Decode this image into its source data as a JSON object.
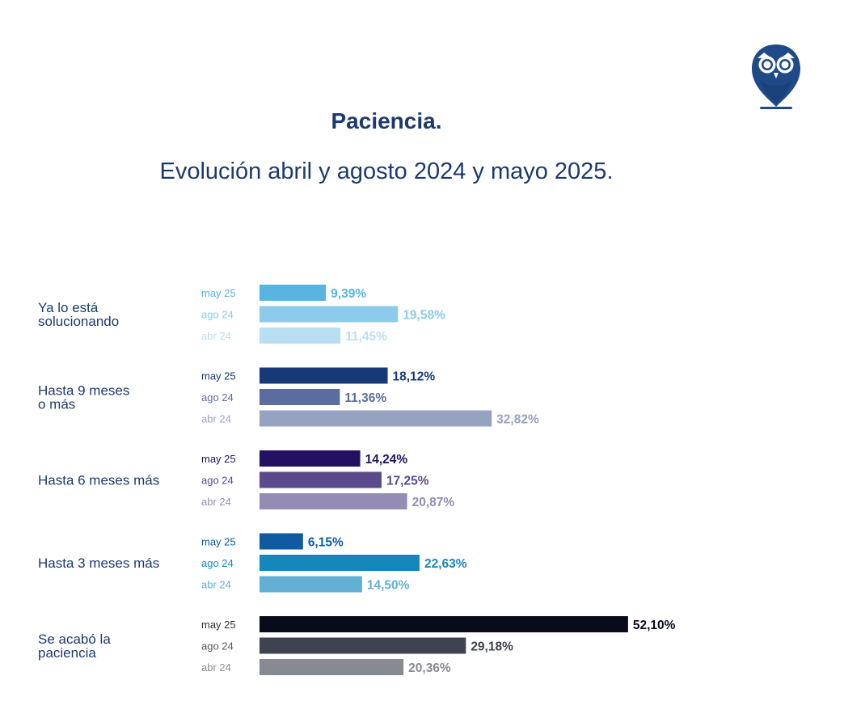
{
  "logo": {
    "icon": "owl-logo-icon",
    "color": "#1f4a8a"
  },
  "header": {
    "title": "Paciencia.",
    "subtitle": "Evolución abril y agosto 2024 y mayo 2025."
  },
  "chart_data": {
    "type": "bar",
    "orientation": "horizontal",
    "title": "Paciencia.",
    "subtitle": "Evolución abril y agosto 2024 y mayo 2025.",
    "periods": [
      "may 25",
      "ago 24",
      "abr 24"
    ],
    "value_suffix": "%",
    "decimal_separator": ",",
    "xlim": [
      0,
      60
    ],
    "groups": [
      {
        "label_lines": [
          "Ya lo está",
          "solucionando"
        ],
        "values": [
          9.39,
          19.58,
          11.45
        ],
        "value_labels": [
          "9,39%",
          "19,58%",
          "11,45%"
        ],
        "colors": [
          "#5ab4e0",
          "#8ccbeb",
          "#b9dff3"
        ],
        "label_colors": [
          "#5ab4e0",
          "#8ccbeb",
          "#b9dff3"
        ],
        "period_colors": [
          "#5ab4e0",
          "#8ccbeb",
          "#b9dff3"
        ]
      },
      {
        "label_lines": [
          "Hasta 9 meses",
          "o más"
        ],
        "values": [
          18.12,
          11.36,
          32.82
        ],
        "value_labels": [
          "18,12%",
          "11,36%",
          "32,82%"
        ],
        "colors": [
          "#163a78",
          "#5a6d9e",
          "#95a3c1"
        ],
        "label_colors": [
          "#163a78",
          "#5a6d9e",
          "#95a3c1"
        ],
        "period_colors": [
          "#163a78",
          "#5a6d9e",
          "#95a3c1"
        ]
      },
      {
        "label_lines": [
          "Hasta 6 meses más"
        ],
        "values": [
          14.24,
          17.25,
          20.87
        ],
        "value_labels": [
          "14,24%",
          "17,25%",
          "20,87%"
        ],
        "colors": [
          "#221261",
          "#5b4a8c",
          "#958cb5"
        ],
        "label_colors": [
          "#221261",
          "#5b4a8c",
          "#958cb5"
        ],
        "period_colors": [
          "#221261",
          "#5b4a8c",
          "#958cb5"
        ]
      },
      {
        "label_lines": [
          "Hasta 3 meses más"
        ],
        "values": [
          6.15,
          22.63,
          14.5
        ],
        "value_labels": [
          "6,15%",
          "22,63%",
          "14,50%"
        ],
        "colors": [
          "#0f5aa0",
          "#1687bb",
          "#62b0d5"
        ],
        "label_colors": [
          "#0f5aa0",
          "#1687bb",
          "#62b0d5"
        ],
        "period_colors": [
          "#0f5aa0",
          "#1687bb",
          "#62b0d5"
        ]
      },
      {
        "label_lines": [
          "Se acabó la",
          "paciencia"
        ],
        "values": [
          52.1,
          29.18,
          20.36
        ],
        "value_labels": [
          "52,10%",
          "29,18%",
          "20,36%"
        ],
        "colors": [
          "#080b1a",
          "#3f434f",
          "#878a91"
        ],
        "label_colors": [
          "#080b1a",
          "#3f434f",
          "#878a91"
        ],
        "period_colors": [
          "#333340",
          "#55575f",
          "#8a8c92"
        ]
      }
    ]
  }
}
